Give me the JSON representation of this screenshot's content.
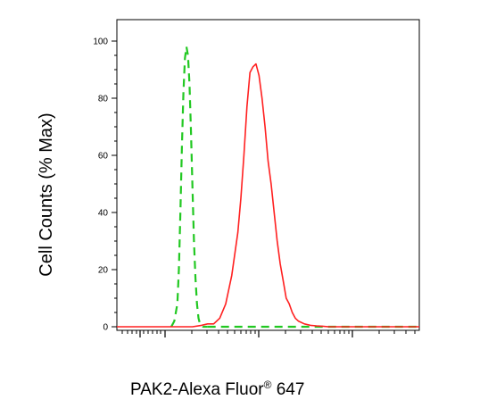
{
  "chart_data": {
    "type": "line",
    "title": "",
    "xlabel": "PAK2-Alexa Fluor",
    "xlabel_superscript": "®",
    "xlabel_suffix": " 647",
    "ylabel": "Cell Counts (% Max)",
    "ylim": [
      0,
      100
    ],
    "xlim": [
      0,
      1000
    ],
    "yticks": [
      "0",
      "20",
      "40",
      "60",
      "80",
      "100"
    ],
    "ytick_values": [
      0,
      20,
      40,
      60,
      80,
      100
    ],
    "legend": "none",
    "grid": false,
    "series": [
      {
        "style": "dashed",
        "color": "#22c822",
        "x": [
          180,
          190,
          200,
          205,
          210,
          215,
          220,
          225,
          230,
          235,
          240,
          245,
          250,
          255,
          260,
          265,
          270,
          275,
          280,
          285,
          290,
          300
        ],
        "y": [
          0,
          2,
          8,
          20,
          40,
          63,
          82,
          94,
          98,
          95,
          85,
          68,
          48,
          30,
          17,
          8,
          3,
          1,
          0.5,
          0,
          0,
          0
        ]
      },
      {
        "style": "dashed",
        "color": "#22c822",
        "x": [
          300,
          400,
          500,
          600,
          700,
          800,
          1000
        ],
        "y": [
          0,
          0,
          0,
          0,
          0,
          0,
          0
        ]
      },
      {
        "style": "solid",
        "color": "#ff2020",
        "x": [
          0,
          150,
          200,
          250,
          280,
          300,
          320,
          340,
          360,
          380,
          400,
          410,
          420,
          430,
          440,
          450,
          460,
          470,
          480,
          490,
          500,
          510,
          520,
          530,
          540,
          550,
          560,
          570,
          580,
          590,
          600,
          620,
          640,
          660,
          680,
          700,
          750,
          800,
          850,
          900,
          1000
        ],
        "y": [
          0,
          0,
          0,
          0,
          0.5,
          1,
          1,
          3,
          8,
          18,
          33,
          45,
          60,
          77,
          89,
          91,
          92,
          88,
          80,
          70,
          58,
          50,
          40,
          30,
          22,
          16,
          10,
          8,
          5,
          3,
          2,
          1,
          0.5,
          0.3,
          0.2,
          0,
          0,
          0,
          0,
          0,
          0
        ]
      }
    ]
  }
}
